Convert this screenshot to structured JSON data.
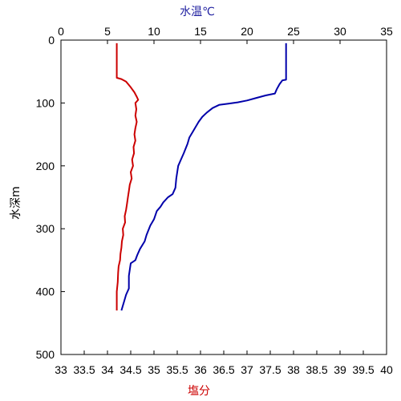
{
  "chart_data": {
    "type": "line",
    "top_axis": {
      "label": "水温℃",
      "label_color": "#1f1fa0",
      "range": [
        0,
        35
      ],
      "ticks": [
        "0",
        "5",
        "10",
        "15",
        "20",
        "25",
        "30",
        "35"
      ]
    },
    "bottom_axis": {
      "label": "塩分",
      "label_color": "#cc0000",
      "range": [
        33,
        40
      ],
      "ticks": [
        "33",
        "33.5",
        "34",
        "34.5",
        "35",
        "35.5",
        "36",
        "36.5",
        "37",
        "37.5",
        "38",
        "38.5",
        "39",
        "39.5",
        "40"
      ]
    },
    "left_axis": {
      "label": "水深m",
      "range": [
        0,
        500
      ],
      "reversed": true,
      "ticks": [
        "0",
        "100",
        "200",
        "300",
        "400",
        "500"
      ]
    },
    "grid": false,
    "series": [
      {
        "axis": "top",
        "color": "#0000aa",
        "points": [
          [
            24.2,
            5
          ],
          [
            24.2,
            30
          ],
          [
            24.2,
            63
          ],
          [
            23.8,
            64
          ],
          [
            23.5,
            70
          ],
          [
            23.2,
            78
          ],
          [
            23.0,
            85
          ],
          [
            22.0,
            88
          ],
          [
            21.0,
            92
          ],
          [
            20.0,
            96
          ],
          [
            19.0,
            99
          ],
          [
            18.0,
            101
          ],
          [
            17.0,
            103
          ],
          [
            16.3,
            108
          ],
          [
            15.7,
            115
          ],
          [
            15.2,
            122
          ],
          [
            14.8,
            130
          ],
          [
            14.2,
            145
          ],
          [
            13.8,
            155
          ],
          [
            13.6,
            165
          ],
          [
            13.2,
            180
          ],
          [
            12.9,
            190
          ],
          [
            12.6,
            200
          ],
          [
            12.5,
            210
          ],
          [
            12.4,
            220
          ],
          [
            12.3,
            235
          ],
          [
            12.0,
            245
          ],
          [
            11.5,
            250
          ],
          [
            11.0,
            258
          ],
          [
            10.7,
            265
          ],
          [
            10.3,
            272
          ],
          [
            10.0,
            285
          ],
          [
            9.6,
            295
          ],
          [
            9.2,
            310
          ],
          [
            9.0,
            320
          ],
          [
            8.5,
            332
          ],
          [
            8.2,
            342
          ],
          [
            8.0,
            350
          ],
          [
            7.5,
            355
          ],
          [
            7.3,
            375
          ],
          [
            7.3,
            395
          ],
          [
            7.0,
            405
          ],
          [
            6.8,
            415
          ],
          [
            6.5,
            430
          ]
        ]
      },
      {
        "axis": "bottom",
        "color": "#cc0000",
        "points": [
          [
            34.2,
            5
          ],
          [
            34.2,
            30
          ],
          [
            34.2,
            60
          ],
          [
            34.3,
            62
          ],
          [
            34.4,
            66
          ],
          [
            34.5,
            75
          ],
          [
            34.58,
            83
          ],
          [
            34.63,
            90
          ],
          [
            34.66,
            95
          ],
          [
            34.6,
            100
          ],
          [
            34.62,
            110
          ],
          [
            34.6,
            120
          ],
          [
            34.63,
            130
          ],
          [
            34.6,
            140
          ],
          [
            34.58,
            150
          ],
          [
            34.6,
            160
          ],
          [
            34.56,
            170
          ],
          [
            34.57,
            180
          ],
          [
            34.53,
            190
          ],
          [
            34.55,
            200
          ],
          [
            34.5,
            210
          ],
          [
            34.52,
            220
          ],
          [
            34.48,
            230
          ],
          [
            34.46,
            240
          ],
          [
            34.44,
            250
          ],
          [
            34.42,
            260
          ],
          [
            34.4,
            270
          ],
          [
            34.37,
            280
          ],
          [
            34.38,
            290
          ],
          [
            34.33,
            300
          ],
          [
            34.34,
            310
          ],
          [
            34.31,
            320
          ],
          [
            34.3,
            330
          ],
          [
            34.28,
            340
          ],
          [
            34.27,
            350
          ],
          [
            34.24,
            360
          ],
          [
            34.23,
            370
          ],
          [
            34.22,
            385
          ],
          [
            34.2,
            400
          ],
          [
            34.2,
            415
          ],
          [
            34.2,
            430
          ]
        ]
      }
    ]
  }
}
